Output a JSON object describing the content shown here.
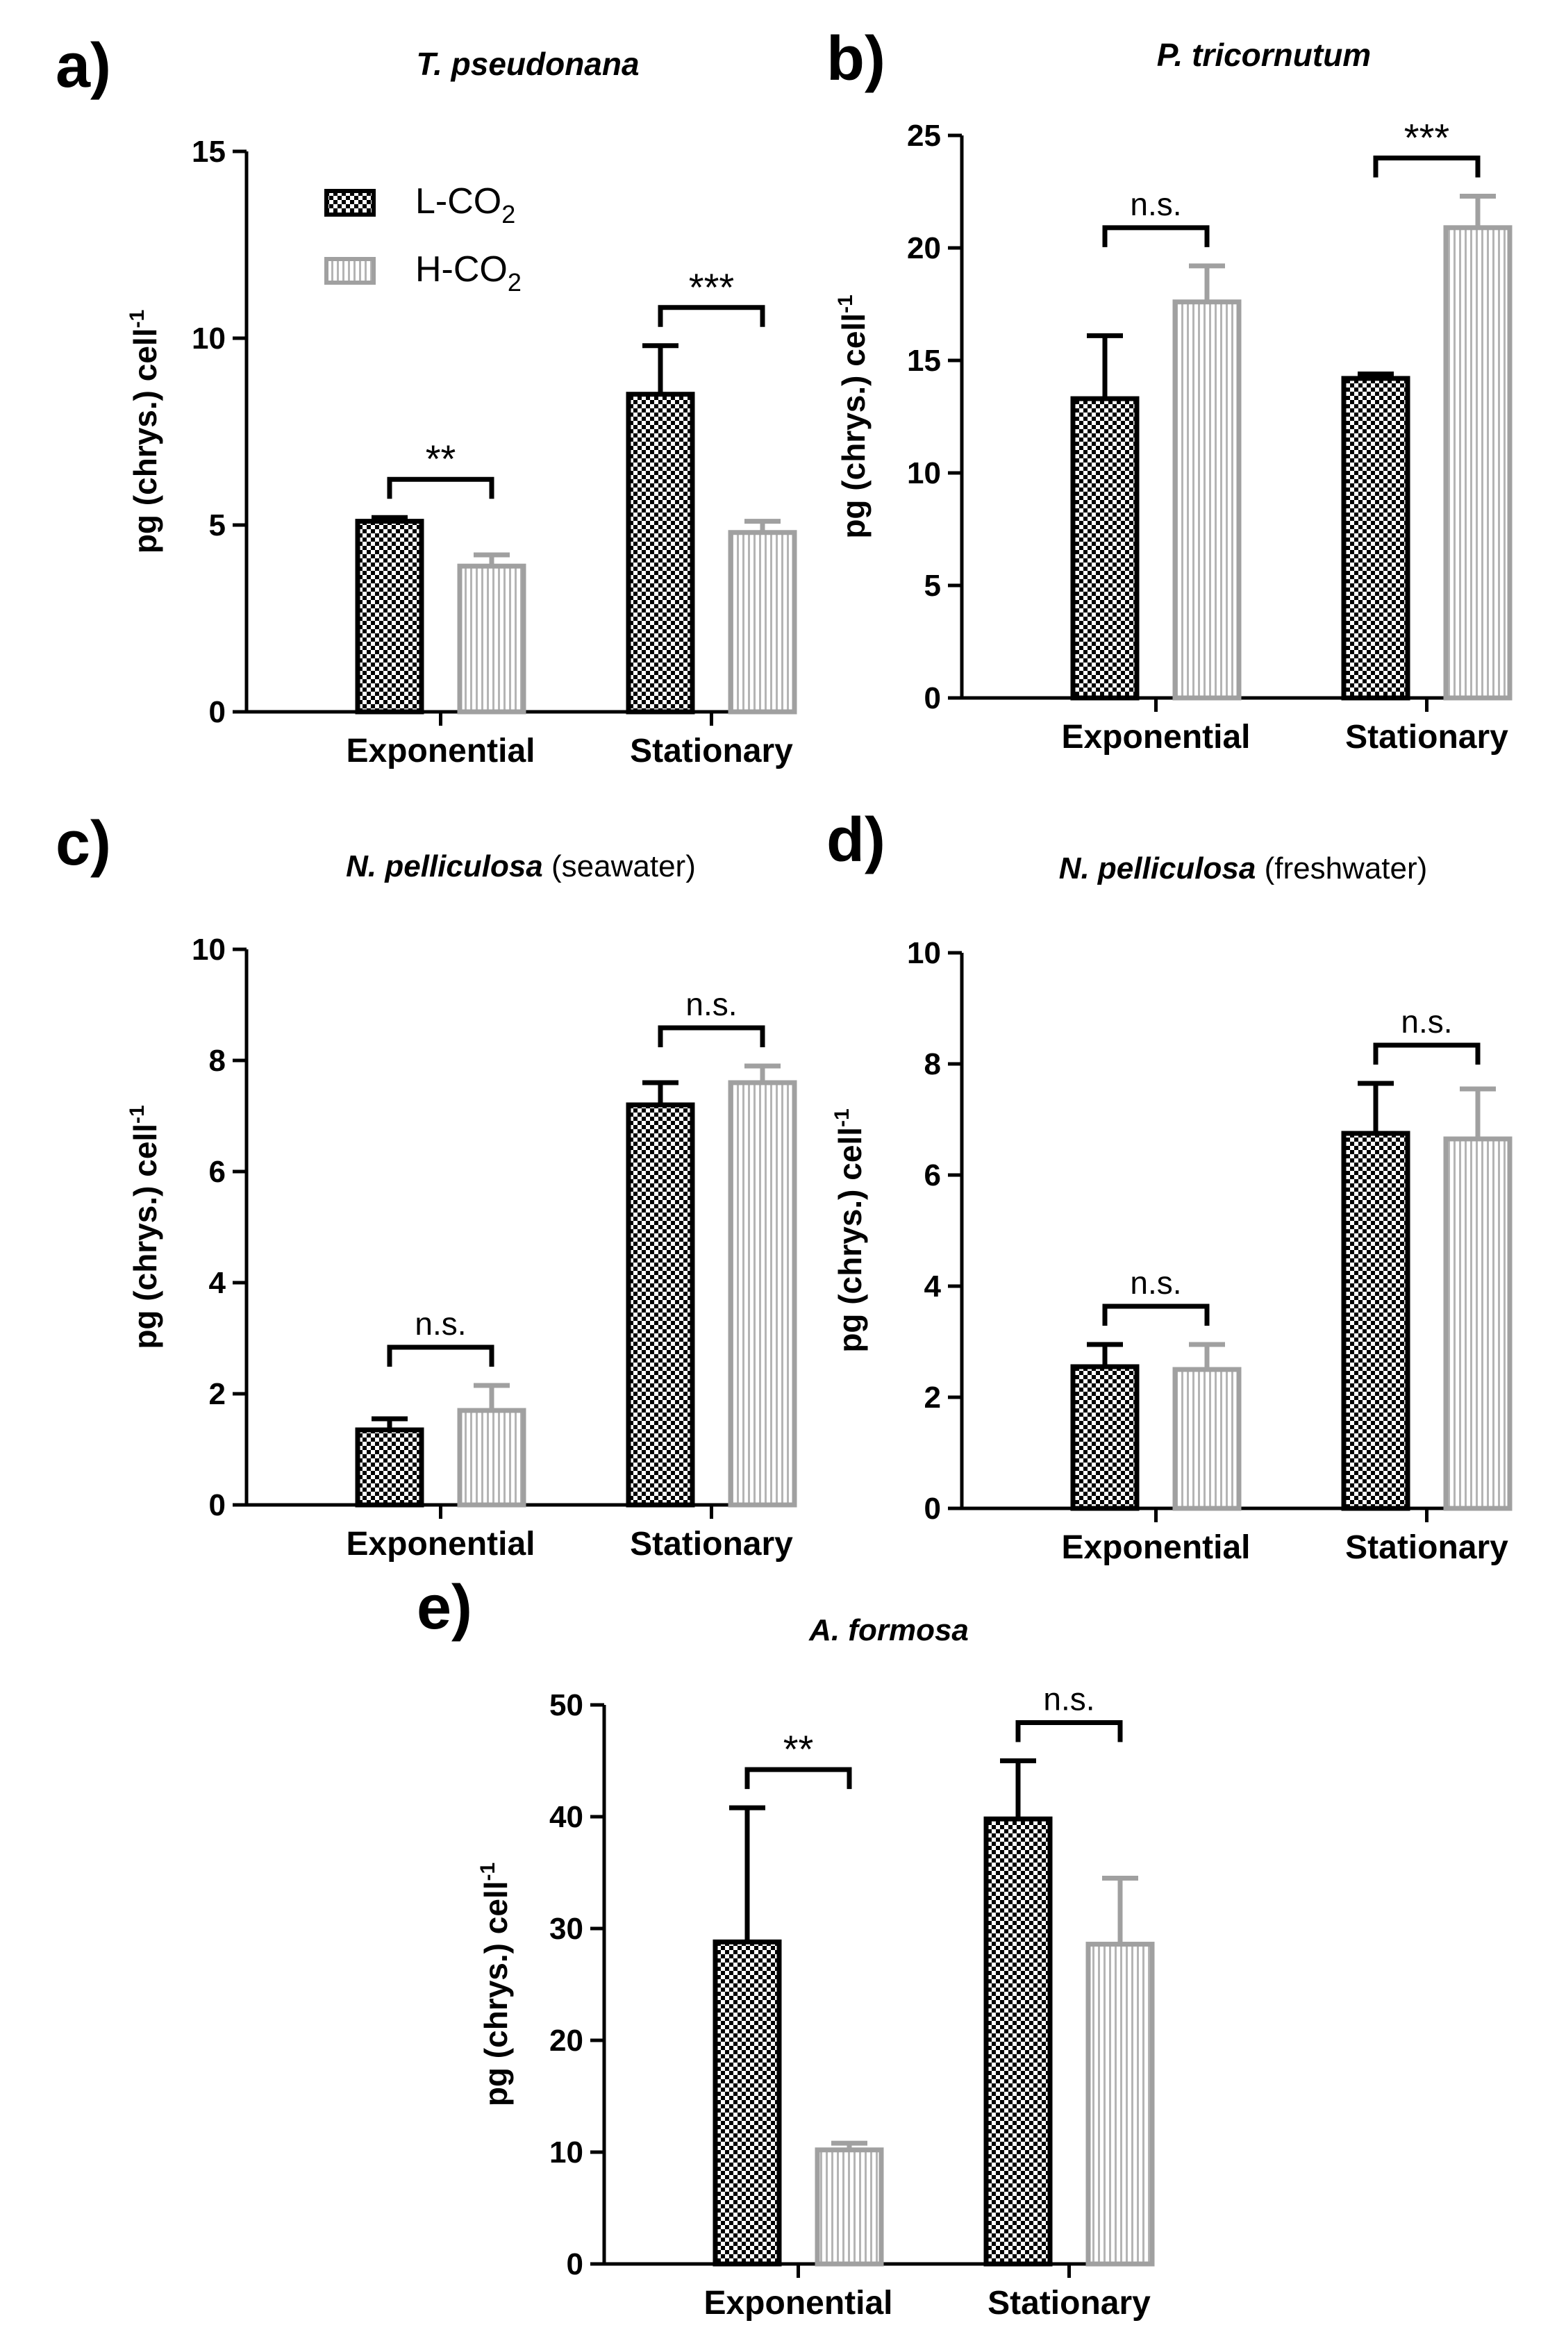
{
  "legend": {
    "l_co2": {
      "name": "L-CO",
      "sub": "2"
    },
    "h_co2": {
      "name": "H-CO",
      "sub": "2"
    }
  },
  "colors": {
    "l_co2_edge": "#000000",
    "h_co2_edge": "#a0a0a0",
    "h_co2_stripe": "#b4b4b4",
    "text": "#000000"
  },
  "ylabel": {
    "main": "pg (chrys.) cell",
    "sup": "-1"
  },
  "chart_data": [
    {
      "panel": "a)",
      "type": "bar",
      "title": "T. pseudonana",
      "title_suffix": "",
      "categories": [
        "Exponential",
        "Stationary"
      ],
      "series": [
        {
          "name": "L-CO2",
          "values": [
            5.1,
            8.5
          ],
          "errors": [
            0.1,
            1.3
          ]
        },
        {
          "name": "H-CO2",
          "values": [
            3.9,
            4.8
          ],
          "errors": [
            0.3,
            0.3
          ]
        }
      ],
      "significance": [
        "**",
        "***"
      ],
      "ylim": [
        0,
        15
      ],
      "yticks": [
        0,
        5,
        10,
        15
      ],
      "legend_position": "top-left"
    },
    {
      "panel": "b)",
      "type": "bar",
      "title": "P. tricornutum",
      "title_suffix": "",
      "categories": [
        "Exponential",
        "Stationary"
      ],
      "series": [
        {
          "name": "L-CO2",
          "values": [
            13.3,
            14.2
          ],
          "errors": [
            2.8,
            0.2
          ]
        },
        {
          "name": "H-CO2",
          "values": [
            17.6,
            20.9
          ],
          "errors": [
            1.6,
            1.4
          ]
        }
      ],
      "significance": [
        "n.s.",
        "***"
      ],
      "ylim": [
        0,
        25
      ],
      "yticks": [
        0,
        5,
        10,
        15,
        20,
        25
      ]
    },
    {
      "panel": "c)",
      "type": "bar",
      "title": "N. pelliculosa",
      "title_suffix": " (seawater)",
      "categories": [
        "Exponential",
        "Stationary"
      ],
      "series": [
        {
          "name": "L-CO2",
          "values": [
            1.35,
            7.2
          ],
          "errors": [
            0.2,
            0.4
          ]
        },
        {
          "name": "H-CO2",
          "values": [
            1.7,
            7.6
          ],
          "errors": [
            0.45,
            0.3
          ]
        }
      ],
      "significance": [
        "n.s.",
        "n.s."
      ],
      "ylim": [
        0,
        10
      ],
      "yticks": [
        0,
        2,
        4,
        6,
        8,
        10
      ]
    },
    {
      "panel": "d)",
      "type": "bar",
      "title": "N. pelliculosa",
      "title_suffix": " (freshwater)",
      "categories": [
        "Exponential",
        "Stationary"
      ],
      "series": [
        {
          "name": "L-CO2",
          "values": [
            2.55,
            6.75
          ],
          "errors": [
            0.4,
            0.9
          ]
        },
        {
          "name": "H-CO2",
          "values": [
            2.5,
            6.65
          ],
          "errors": [
            0.45,
            0.9
          ]
        }
      ],
      "significance": [
        "n.s.",
        "n.s."
      ],
      "ylim": [
        0,
        10
      ],
      "yticks": [
        0,
        2,
        4,
        6,
        8,
        10
      ]
    },
    {
      "panel": "e)",
      "type": "bar",
      "title": "A. formosa",
      "title_suffix": "",
      "categories": [
        "Exponential",
        "Stationary"
      ],
      "series": [
        {
          "name": "L-CO2",
          "values": [
            28.8,
            39.8
          ],
          "errors": [
            12.0,
            5.2
          ]
        },
        {
          "name": "H-CO2",
          "values": [
            10.2,
            28.6
          ],
          "errors": [
            0.6,
            5.9
          ]
        }
      ],
      "significance": [
        "**",
        "n.s."
      ],
      "ylim": [
        0,
        50
      ],
      "yticks": [
        0,
        10,
        20,
        30,
        40,
        50
      ]
    }
  ]
}
